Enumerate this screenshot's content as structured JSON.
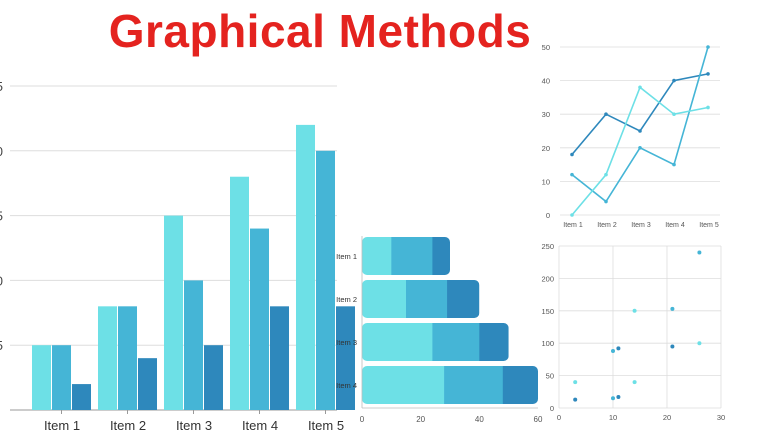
{
  "title": "Graphical Methods",
  "colors": {
    "title": "#e4231f",
    "light": "#6de0e6",
    "mid": "#45b5d6",
    "dark": "#2e88bc",
    "grid": "#dddddd",
    "axis_text": "#555555"
  },
  "chart_data": [
    {
      "type": "bar",
      "categories": [
        "Item 1",
        "Item 2",
        "Item 3",
        "Item 4",
        "Item 5"
      ],
      "series": [
        {
          "values": [
            5,
            8,
            15,
            18,
            22
          ]
        },
        {
          "values": [
            5,
            8,
            10,
            14,
            20
          ]
        },
        {
          "values": [
            2,
            4,
            5,
            8,
            8
          ]
        }
      ],
      "yticks": [
        "",
        "5",
        "0",
        "5",
        "0",
        "5"
      ],
      "ylim": [
        0,
        25
      ],
      "grid": true
    },
    {
      "type": "line",
      "categories": [
        "Item 1",
        "Item 2",
        "Item 3",
        "Item 4",
        "Item 5"
      ],
      "series": [
        {
          "values": [
            18,
            30,
            25,
            40,
            42
          ]
        },
        {
          "values": [
            12,
            4,
            20,
            15,
            50
          ]
        },
        {
          "values": [
            0,
            12,
            38,
            30,
            32
          ]
        }
      ],
      "yticks": [
        "0",
        "10",
        "20",
        "30",
        "40",
        "50"
      ],
      "ylim": [
        0,
        50
      ],
      "grid": true
    },
    {
      "type": "bar",
      "orientation": "horizontal",
      "stacked": true,
      "categories": [
        "Item 1",
        "Item 2",
        "Item 3",
        "Item 4"
      ],
      "series": [
        {
          "values": [
            10,
            15,
            24,
            28
          ]
        },
        {
          "values": [
            14,
            14,
            16,
            20
          ]
        },
        {
          "values": [
            6,
            11,
            10,
            12
          ]
        }
      ],
      "xticks": [
        "0",
        "20",
        "40",
        "60"
      ],
      "xlim": [
        0,
        60
      ]
    },
    {
      "type": "scatter",
      "points": [
        [
          3,
          13
        ],
        [
          3,
          40
        ],
        [
          10,
          15
        ],
        [
          11,
          17
        ],
        [
          14,
          40
        ],
        [
          10,
          88
        ],
        [
          11,
          92
        ],
        [
          14,
          150
        ],
        [
          21,
          153
        ],
        [
          21,
          95
        ],
        [
          26,
          100
        ],
        [
          26,
          240
        ]
      ],
      "xticks": [
        "0",
        "10",
        "20",
        "30"
      ],
      "yticks": [
        "0",
        "50",
        "100",
        "150",
        "200",
        "250"
      ],
      "xlim": [
        0,
        30
      ],
      "ylim": [
        0,
        250
      ],
      "grid": true
    }
  ]
}
